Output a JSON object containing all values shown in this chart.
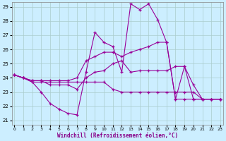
{
  "xlabel": "Windchill (Refroidissement éolien,°C)",
  "bg_color": "#cceeff",
  "grid_color": "#aacccc",
  "line_color": "#990099",
  "xmin": 0,
  "xmax": 23,
  "ymin": 21,
  "ymax": 29,
  "yticks": [
    21,
    22,
    23,
    24,
    25,
    26,
    27,
    28,
    29
  ],
  "xticks": [
    0,
    1,
    2,
    3,
    4,
    5,
    6,
    7,
    8,
    9,
    10,
    11,
    12,
    13,
    14,
    15,
    16,
    17,
    18,
    19,
    20,
    21,
    22,
    23
  ],
  "series": [
    {
      "x": [
        0,
        1,
        2,
        3,
        4,
        5,
        6,
        7,
        8,
        9,
        10,
        11,
        12,
        13,
        14,
        15,
        16,
        17,
        18,
        19,
        20,
        21,
        22,
        23
      ],
      "y": [
        24.2,
        24.0,
        23.7,
        23.0,
        22.2,
        21.8,
        21.5,
        21.4,
        24.4,
        27.2,
        26.5,
        26.2,
        24.4,
        29.2,
        28.8,
        29.2,
        28.1,
        26.5,
        22.5,
        24.8,
        23.5,
        22.5,
        22.5,
        22.5
      ]
    },
    {
      "x": [
        0,
        1,
        2,
        3,
        4,
        5,
        6,
        7,
        8,
        9,
        10,
        11,
        12,
        13,
        14,
        15,
        16,
        17,
        18,
        19,
        20,
        21,
        22,
        23
      ],
      "y": [
        24.2,
        24.0,
        23.8,
        23.8,
        23.8,
        23.8,
        23.8,
        24.0,
        25.2,
        25.5,
        25.8,
        25.8,
        25.5,
        25.8,
        26.0,
        26.2,
        26.5,
        26.5,
        22.5,
        22.5,
        22.5,
        22.5,
        22.5,
        22.5
      ]
    },
    {
      "x": [
        0,
        1,
        2,
        3,
        4,
        5,
        6,
        7,
        8,
        9,
        10,
        11,
        12,
        13,
        14,
        15,
        16,
        17,
        18,
        19,
        20,
        21,
        22,
        23
      ],
      "y": [
        24.2,
        24.0,
        23.8,
        23.8,
        23.5,
        23.5,
        23.5,
        23.2,
        24.0,
        24.4,
        24.5,
        25.0,
        25.2,
        24.4,
        24.5,
        24.5,
        24.5,
        24.5,
        24.8,
        24.8,
        22.5,
        22.5,
        22.5,
        22.5
      ]
    },
    {
      "x": [
        0,
        1,
        2,
        3,
        4,
        5,
        6,
        7,
        8,
        9,
        10,
        11,
        12,
        13,
        14,
        15,
        16,
        17,
        18,
        19,
        20,
        21,
        22,
        23
      ],
      "y": [
        24.2,
        24.0,
        23.7,
        23.7,
        23.7,
        23.7,
        23.7,
        23.7,
        23.7,
        23.7,
        23.7,
        23.2,
        23.0,
        23.0,
        23.0,
        23.0,
        23.0,
        23.0,
        23.0,
        23.0,
        23.0,
        22.5,
        22.5,
        22.5
      ]
    }
  ]
}
